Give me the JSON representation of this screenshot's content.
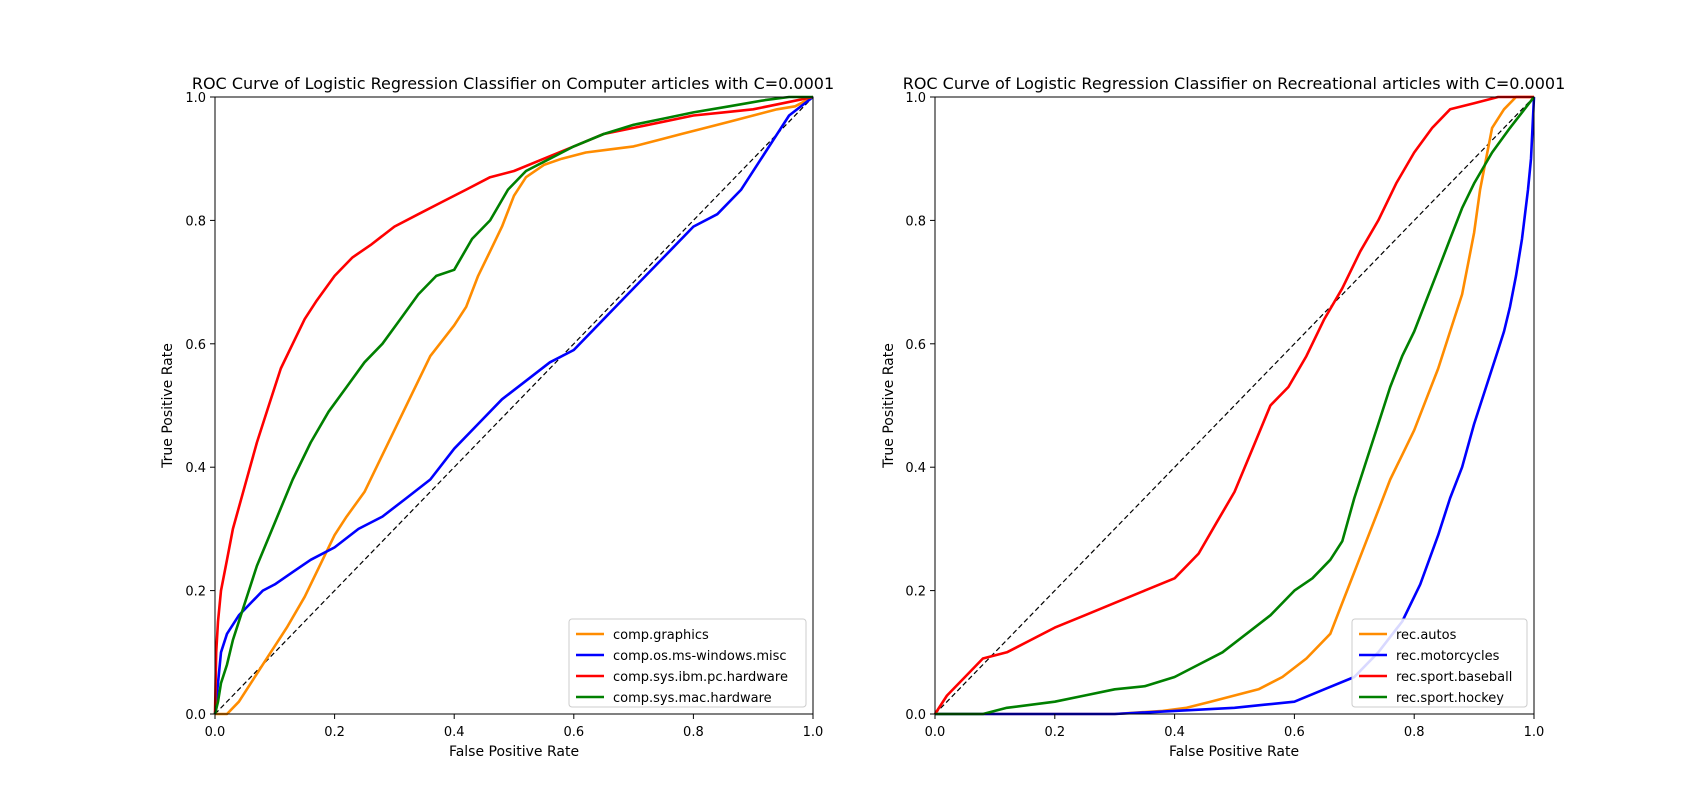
{
  "chart_data": [
    {
      "type": "line",
      "title": "ROC Curve of Logistic Regression Classifier on Computer articles with C=0.0001",
      "xlabel": "False Positive Rate",
      "ylabel": "True Positive Rate",
      "xlim": [
        0.0,
        1.0
      ],
      "ylim": [
        0.0,
        1.0
      ],
      "xticks": [
        "0.0",
        "0.2",
        "0.4",
        "0.6",
        "0.8",
        "1.0"
      ],
      "yticks": [
        "0.0",
        "0.2",
        "0.4",
        "0.6",
        "0.8",
        "1.0"
      ],
      "grid": false,
      "legend_position": "lower-right",
      "diagonal": {
        "x": [
          0,
          1
        ],
        "y": [
          0,
          1
        ],
        "style": "dashed",
        "color": "#000000"
      },
      "series": [
        {
          "name": "comp.graphics",
          "color": "#ff8c00",
          "x": [
            0,
            0.02,
            0.04,
            0.06,
            0.08,
            0.1,
            0.12,
            0.15,
            0.18,
            0.2,
            0.22,
            0.25,
            0.28,
            0.3,
            0.33,
            0.36,
            0.4,
            0.42,
            0.44,
            0.46,
            0.48,
            0.5,
            0.52,
            0.55,
            0.58,
            0.62,
            0.66,
            0.7,
            0.74,
            0.78,
            0.82,
            0.86,
            0.9,
            0.94,
            0.97,
            1.0
          ],
          "y": [
            0,
            0.0,
            0.02,
            0.05,
            0.08,
            0.11,
            0.14,
            0.19,
            0.25,
            0.29,
            0.32,
            0.36,
            0.42,
            0.46,
            0.52,
            0.58,
            0.63,
            0.66,
            0.71,
            0.75,
            0.79,
            0.84,
            0.87,
            0.89,
            0.9,
            0.91,
            0.915,
            0.92,
            0.93,
            0.94,
            0.95,
            0.96,
            0.97,
            0.98,
            0.985,
            1.0
          ]
        },
        {
          "name": "comp.os.ms-windows.misc",
          "color": "#0000ff",
          "x": [
            0,
            0.005,
            0.01,
            0.02,
            0.04,
            0.06,
            0.08,
            0.1,
            0.13,
            0.16,
            0.2,
            0.24,
            0.28,
            0.32,
            0.36,
            0.4,
            0.44,
            0.48,
            0.52,
            0.56,
            0.6,
            0.64,
            0.68,
            0.72,
            0.76,
            0.8,
            0.84,
            0.88,
            0.92,
            0.96,
            1.0
          ],
          "y": [
            0,
            0.05,
            0.1,
            0.13,
            0.16,
            0.18,
            0.2,
            0.21,
            0.23,
            0.25,
            0.27,
            0.3,
            0.32,
            0.35,
            0.38,
            0.43,
            0.47,
            0.51,
            0.54,
            0.57,
            0.59,
            0.63,
            0.67,
            0.71,
            0.75,
            0.79,
            0.81,
            0.85,
            0.91,
            0.97,
            1.0
          ]
        },
        {
          "name": "comp.sys.ibm.pc.hardware",
          "color": "#ff0000",
          "x": [
            0,
            0.002,
            0.005,
            0.01,
            0.02,
            0.03,
            0.05,
            0.07,
            0.09,
            0.11,
            0.13,
            0.15,
            0.17,
            0.2,
            0.23,
            0.26,
            0.3,
            0.34,
            0.38,
            0.42,
            0.46,
            0.5,
            0.55,
            0.6,
            0.65,
            0.7,
            0.75,
            0.8,
            0.85,
            0.9,
            0.95,
            1.0
          ],
          "y": [
            0,
            0.1,
            0.15,
            0.2,
            0.25,
            0.3,
            0.37,
            0.44,
            0.5,
            0.56,
            0.6,
            0.64,
            0.67,
            0.71,
            0.74,
            0.76,
            0.79,
            0.81,
            0.83,
            0.85,
            0.87,
            0.88,
            0.9,
            0.92,
            0.94,
            0.95,
            0.96,
            0.97,
            0.975,
            0.98,
            0.99,
            1.0
          ]
        },
        {
          "name": "comp.sys.mac.hardware",
          "color": "#008000",
          "x": [
            0,
            0.005,
            0.01,
            0.02,
            0.03,
            0.05,
            0.07,
            0.1,
            0.13,
            0.16,
            0.19,
            0.22,
            0.25,
            0.28,
            0.31,
            0.34,
            0.37,
            0.4,
            0.43,
            0.46,
            0.49,
            0.52,
            0.56,
            0.6,
            0.65,
            0.7,
            0.75,
            0.8,
            0.86,
            0.92,
            0.96,
            1.0
          ],
          "y": [
            0,
            0.02,
            0.05,
            0.08,
            0.12,
            0.18,
            0.24,
            0.31,
            0.38,
            0.44,
            0.49,
            0.53,
            0.57,
            0.6,
            0.64,
            0.68,
            0.71,
            0.72,
            0.77,
            0.8,
            0.85,
            0.88,
            0.9,
            0.92,
            0.94,
            0.955,
            0.965,
            0.975,
            0.985,
            0.995,
            1.0,
            1.0
          ]
        }
      ]
    },
    {
      "type": "line",
      "title": "ROC Curve of Logistic Regression Classifier on Recreational articles with C=0.0001",
      "xlabel": "False Positive Rate",
      "ylabel": "True Positive Rate",
      "xlim": [
        0.0,
        1.0
      ],
      "ylim": [
        0.0,
        1.0
      ],
      "xticks": [
        "0.0",
        "0.2",
        "0.4",
        "0.6",
        "0.8",
        "1.0"
      ],
      "yticks": [
        "0.0",
        "0.2",
        "0.4",
        "0.6",
        "0.8",
        "1.0"
      ],
      "grid": false,
      "legend_position": "lower-right",
      "diagonal": {
        "x": [
          0,
          1
        ],
        "y": [
          0,
          1
        ],
        "style": "dashed",
        "color": "#000000"
      },
      "series": [
        {
          "name": "rec.autos",
          "color": "#ff8c00",
          "x": [
            0,
            0.1,
            0.2,
            0.3,
            0.38,
            0.42,
            0.46,
            0.5,
            0.54,
            0.58,
            0.62,
            0.66,
            0.68,
            0.7,
            0.72,
            0.74,
            0.76,
            0.78,
            0.8,
            0.82,
            0.84,
            0.86,
            0.88,
            0.89,
            0.9,
            0.91,
            0.92,
            0.93,
            0.95,
            0.97,
            1.0
          ],
          "y": [
            0,
            0.0,
            0.0,
            0.0,
            0.005,
            0.01,
            0.02,
            0.03,
            0.04,
            0.06,
            0.09,
            0.13,
            0.18,
            0.23,
            0.28,
            0.33,
            0.38,
            0.42,
            0.46,
            0.51,
            0.56,
            0.62,
            0.68,
            0.73,
            0.78,
            0.85,
            0.9,
            0.95,
            0.98,
            1.0,
            1.0
          ]
        },
        {
          "name": "rec.motorcycles",
          "color": "#0000ff",
          "x": [
            0,
            0.15,
            0.3,
            0.4,
            0.5,
            0.55,
            0.6,
            0.65,
            0.7,
            0.74,
            0.78,
            0.81,
            0.84,
            0.86,
            0.88,
            0.9,
            0.92,
            0.94,
            0.95,
            0.96,
            0.97,
            0.98,
            0.99,
            0.995,
            1.0
          ],
          "y": [
            0,
            0.0,
            0.0,
            0.005,
            0.01,
            0.015,
            0.02,
            0.04,
            0.06,
            0.1,
            0.15,
            0.21,
            0.29,
            0.35,
            0.4,
            0.47,
            0.53,
            0.59,
            0.62,
            0.66,
            0.71,
            0.77,
            0.85,
            0.9,
            1.0
          ]
        },
        {
          "name": "rec.sport.baseball",
          "color": "#ff0000",
          "x": [
            0,
            0.02,
            0.05,
            0.08,
            0.12,
            0.16,
            0.2,
            0.25,
            0.3,
            0.35,
            0.4,
            0.44,
            0.47,
            0.5,
            0.53,
            0.56,
            0.59,
            0.62,
            0.65,
            0.68,
            0.71,
            0.74,
            0.77,
            0.8,
            0.83,
            0.86,
            0.9,
            0.94,
            0.97,
            1.0
          ],
          "y": [
            0,
            0.03,
            0.06,
            0.09,
            0.1,
            0.12,
            0.14,
            0.16,
            0.18,
            0.2,
            0.22,
            0.26,
            0.31,
            0.36,
            0.43,
            0.5,
            0.53,
            0.58,
            0.64,
            0.69,
            0.75,
            0.8,
            0.86,
            0.91,
            0.95,
            0.98,
            0.99,
            1.0,
            1.0,
            1.0
          ]
        },
        {
          "name": "rec.sport.hockey",
          "color": "#008000",
          "x": [
            0,
            0.08,
            0.12,
            0.2,
            0.25,
            0.3,
            0.35,
            0.4,
            0.44,
            0.48,
            0.52,
            0.56,
            0.6,
            0.63,
            0.66,
            0.68,
            0.7,
            0.72,
            0.74,
            0.76,
            0.78,
            0.8,
            0.82,
            0.84,
            0.86,
            0.88,
            0.9,
            0.93,
            0.96,
            1.0
          ],
          "y": [
            0,
            0.0,
            0.01,
            0.02,
            0.03,
            0.04,
            0.045,
            0.06,
            0.08,
            0.1,
            0.13,
            0.16,
            0.2,
            0.22,
            0.25,
            0.28,
            0.35,
            0.41,
            0.47,
            0.53,
            0.58,
            0.62,
            0.67,
            0.72,
            0.77,
            0.82,
            0.86,
            0.91,
            0.95,
            1.0
          ]
        }
      ]
    }
  ]
}
